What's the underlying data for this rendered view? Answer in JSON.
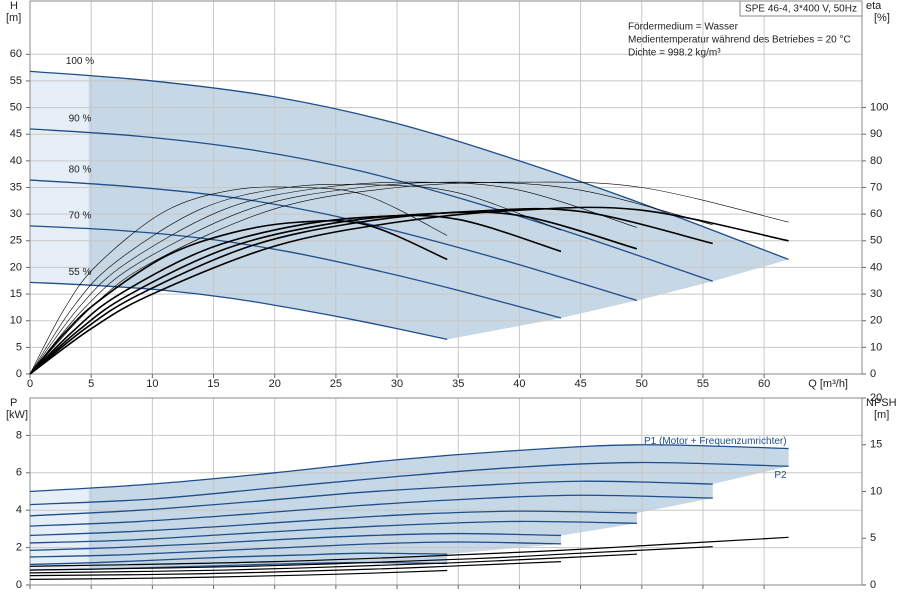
{
  "chart_data": [
    {
      "type": "line",
      "title": "SPE 46-4, 3*400 V, 50Hz",
      "annotations": [
        "Fördermedium = Wasser",
        "Medientemperatur während des Betriebes = 20 °C",
        "Dichte = 998.2 kg/m³"
      ],
      "xlabel": "Q [m³/h]",
      "ylabel": "H",
      "yunit": "[m]",
      "y2label": "eta",
      "y2unit": "[%]",
      "xlim": [
        0,
        68
      ],
      "xticks": [
        0,
        5,
        10,
        15,
        20,
        25,
        30,
        35,
        40,
        45,
        50,
        55,
        60
      ],
      "ylim": [
        0,
        70
      ],
      "yticks": [
        0,
        5,
        10,
        15,
        20,
        25,
        30,
        35,
        40,
        45,
        50,
        55,
        60
      ],
      "y2lim": [
        0,
        140
      ],
      "y2ticks": [
        0,
        10,
        20,
        30,
        40,
        50,
        60,
        70,
        80,
        90,
        100
      ],
      "grid": true,
      "label_at": "start",
      "shade_xmin": 4.8,
      "shade_color": "#c6d7e5",
      "shade_light_color": "#e6eff7",
      "series": [
        {
          "name": "100 %",
          "color": "#1f4e8c",
          "x": [
            0,
            10,
            20,
            30,
            40,
            50,
            62
          ],
          "values": [
            56.8,
            55.0,
            52.0,
            47.0,
            40.0,
            32.0,
            21.5
          ]
        },
        {
          "name": "90 %",
          "color": "#1f4e8c",
          "x": [
            0,
            9,
            18,
            27,
            36,
            45,
            55.8
          ],
          "values": [
            46.0,
            44.6,
            42.1,
            38.1,
            32.4,
            25.9,
            17.4
          ]
        },
        {
          "name": "80 %",
          "color": "#1f4e8c",
          "x": [
            0,
            8,
            16,
            24,
            32,
            40,
            49.6
          ],
          "values": [
            36.4,
            35.2,
            33.3,
            30.1,
            25.6,
            20.5,
            13.8
          ]
        },
        {
          "name": "70 %",
          "color": "#1f4e8c",
          "x": [
            0,
            7,
            14,
            21,
            28,
            35,
            43.4
          ],
          "values": [
            27.8,
            27.0,
            25.5,
            23.0,
            19.6,
            15.7,
            10.5
          ]
        },
        {
          "name": "55 %",
          "color": "#1f4e8c",
          "x": [
            0,
            5.5,
            11,
            16.5,
            22,
            27.5,
            34.1
          ],
          "values": [
            17.2,
            16.6,
            15.7,
            14.2,
            12.1,
            9.7,
            6.5
          ]
        },
        {
          "axis": "y2",
          "color": "#000000",
          "linewidth": 1.6,
          "x": [
            0,
            5,
            10,
            20,
            30,
            40,
            50,
            62
          ],
          "values": [
            0,
            17,
            30,
            48,
            57,
            61.5,
            61.5,
            50
          ]
        },
        {
          "axis": "y2",
          "color": "#000000",
          "linewidth": 1.6,
          "x": [
            0,
            4.5,
            9,
            18,
            27,
            36,
            45,
            55.8
          ],
          "values": [
            0,
            17,
            30,
            48,
            57,
            61,
            61,
            49
          ]
        },
        {
          "axis": "y2",
          "color": "#000000",
          "linewidth": 1.6,
          "x": [
            0,
            4,
            8,
            16,
            24,
            32,
            40,
            49.6
          ],
          "values": [
            0,
            16.5,
            29.5,
            47,
            56,
            60,
            59.5,
            47
          ]
        },
        {
          "axis": "y2",
          "color": "#000000",
          "linewidth": 1.6,
          "x": [
            0,
            3.5,
            7,
            14,
            21,
            28,
            35,
            43.4
          ],
          "values": [
            0,
            16,
            29,
            46,
            55,
            59,
            58,
            46
          ]
        },
        {
          "axis": "y2",
          "color": "#000000",
          "linewidth": 1.6,
          "x": [
            0,
            2.75,
            5.5,
            11,
            16.5,
            22,
            27.5,
            34.1
          ],
          "values": [
            0,
            15,
            27,
            44,
            53,
            57,
            56,
            43
          ]
        },
        {
          "axis": "y2",
          "color": "#000000",
          "linewidth": 0.6,
          "x": [
            0,
            5,
            10,
            20,
            30,
            40,
            50,
            62
          ],
          "values": [
            0,
            25,
            42,
            62,
            70,
            72,
            70,
            57
          ]
        },
        {
          "axis": "y2",
          "color": "#000000",
          "linewidth": 0.6,
          "x": [
            0,
            4.5,
            9,
            18,
            27,
            36,
            45,
            55.8
          ],
          "values": [
            0,
            25,
            42,
            62,
            70,
            72,
            69,
            56
          ]
        },
        {
          "axis": "y2",
          "color": "#000000",
          "linewidth": 0.6,
          "x": [
            0,
            4,
            8,
            16,
            24,
            32,
            40,
            49.6
          ],
          "values": [
            0,
            25,
            42,
            62,
            70,
            72,
            69,
            55
          ]
        },
        {
          "axis": "y2",
          "color": "#000000",
          "linewidth": 0.6,
          "x": [
            0,
            3.5,
            7,
            14,
            21,
            28,
            35,
            43.4
          ],
          "values": [
            0,
            25,
            42,
            62,
            70,
            71,
            68,
            54
          ]
        },
        {
          "axis": "y2",
          "color": "#000000",
          "linewidth": 0.6,
          "x": [
            0,
            2.75,
            5.5,
            11,
            16.5,
            22,
            27.5,
            34.1
          ],
          "values": [
            0,
            24,
            41,
            61,
            69,
            70,
            67,
            52
          ]
        }
      ]
    },
    {
      "type": "line",
      "ylabel": "P",
      "yunit": "[kW]",
      "y2label": "NPSH",
      "y2unit": "[m]",
      "xlim": [
        0,
        68
      ],
      "xticks": [
        0,
        5,
        10,
        15,
        20,
        25,
        30,
        35,
        40,
        45,
        50,
        55,
        60
      ],
      "xtick_labels": false,
      "ylim": [
        0,
        10
      ],
      "yticks": [
        0,
        2,
        4,
        6,
        8
      ],
      "y2lim": [
        0,
        20
      ],
      "y2ticks": [
        0,
        5,
        10,
        15,
        20
      ],
      "grid": true,
      "label_at": "end",
      "shade_xmin": 4.8,
      "shade_color": "#c6d7e5",
      "shade_light_color": "#e6eff7",
      "series": [
        {
          "name": "P1 (Motor + Frequenzumrichter)",
          "color": "#1f4e8c",
          "x": [
            0,
            10,
            20,
            30,
            40,
            50,
            62
          ],
          "values": [
            5.0,
            5.4,
            6.0,
            6.7,
            7.2,
            7.5,
            7.3
          ]
        },
        {
          "name": "P2",
          "color": "#1f4e8c",
          "x": [
            0,
            10,
            20,
            30,
            40,
            50,
            62
          ],
          "values": [
            4.3,
            4.6,
            5.2,
            5.8,
            6.3,
            6.55,
            6.35
          ]
        },
        {
          "color": "#1f4e8c",
          "x": [
            0,
            9,
            18,
            27,
            36,
            45,
            55.8
          ],
          "values": [
            3.7,
            4.0,
            4.45,
            4.95,
            5.3,
            5.55,
            5.4
          ]
        },
        {
          "color": "#1f4e8c",
          "x": [
            0,
            9,
            18,
            27,
            36,
            45,
            55.8
          ],
          "values": [
            3.15,
            3.4,
            3.8,
            4.25,
            4.6,
            4.8,
            4.65
          ]
        },
        {
          "color": "#1f4e8c",
          "x": [
            0,
            8,
            16,
            24,
            32,
            40,
            49.6
          ],
          "values": [
            2.65,
            2.85,
            3.15,
            3.5,
            3.8,
            3.95,
            3.85
          ]
        },
        {
          "color": "#1f4e8c",
          "x": [
            0,
            8,
            16,
            24,
            32,
            40,
            49.6
          ],
          "values": [
            2.25,
            2.4,
            2.7,
            3.0,
            3.25,
            3.4,
            3.3
          ]
        },
        {
          "color": "#1f4e8c",
          "x": [
            0,
            7,
            14,
            21,
            28,
            35,
            43.4
          ],
          "values": [
            1.85,
            2.0,
            2.2,
            2.45,
            2.65,
            2.75,
            2.65
          ]
        },
        {
          "color": "#1f4e8c",
          "x": [
            0,
            7,
            14,
            21,
            28,
            35,
            43.4
          ],
          "values": [
            1.5,
            1.6,
            1.8,
            2.0,
            2.2,
            2.3,
            2.2
          ]
        },
        {
          "color": "#1f4e8c",
          "x": [
            0,
            5.5,
            11,
            16.5,
            22,
            27.5,
            34.1
          ],
          "values": [
            1.1,
            1.2,
            1.35,
            1.5,
            1.6,
            1.7,
            1.65
          ]
        },
        {
          "color": "#1f4e8c",
          "x": [
            0,
            5.5,
            11,
            16.5,
            22,
            27.5,
            34.1
          ],
          "values": [
            0.8,
            0.85,
            0.95,
            1.05,
            1.15,
            1.2,
            1.15
          ]
        },
        {
          "axis": "y2",
          "color": "#000000",
          "linewidth": 1.2,
          "x": [
            0,
            20,
            40,
            50,
            62
          ],
          "values": [
            2.0,
            2.5,
            3.5,
            4.2,
            5.1
          ]
        },
        {
          "axis": "y2",
          "color": "#000000",
          "linewidth": 1.2,
          "x": [
            0,
            18,
            36,
            45,
            55.8
          ],
          "values": [
            1.6,
            2.0,
            2.8,
            3.4,
            4.1
          ]
        },
        {
          "axis": "y2",
          "color": "#000000",
          "linewidth": 1.2,
          "x": [
            0,
            16,
            32,
            40,
            49.6
          ],
          "values": [
            1.3,
            1.6,
            2.25,
            2.7,
            3.3
          ]
        },
        {
          "axis": "y2",
          "color": "#000000",
          "linewidth": 1.2,
          "x": [
            0,
            14,
            28,
            35,
            43.4
          ],
          "values": [
            1.0,
            1.2,
            1.7,
            2.05,
            2.5
          ]
        },
        {
          "axis": "y2",
          "color": "#000000",
          "linewidth": 1.2,
          "x": [
            0,
            11,
            22,
            27.5,
            34.1
          ],
          "values": [
            0.6,
            0.75,
            1.05,
            1.25,
            1.55
          ]
        }
      ]
    }
  ]
}
